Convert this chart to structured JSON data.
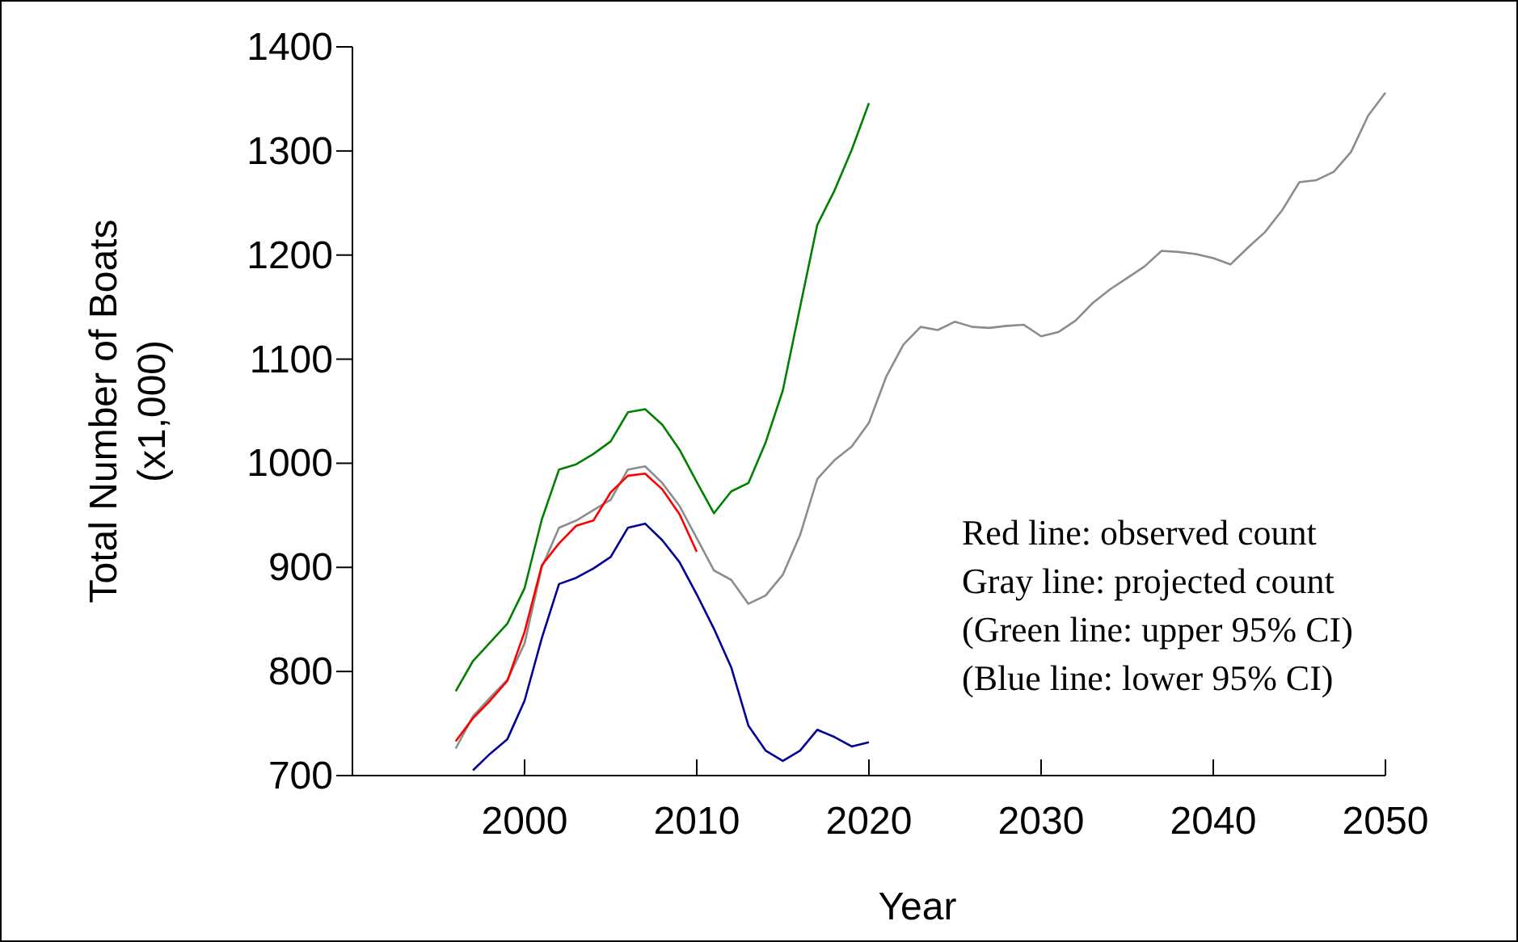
{
  "chart_data": {
    "type": "line",
    "xlabel": "Year",
    "ylabel": "Total Number of Boats\n(x1,000)",
    "xlim": [
      1990,
      2050
    ],
    "xticks": [
      2000,
      2010,
      2020,
      2030,
      2040,
      2050
    ],
    "ylim": [
      700,
      1400
    ],
    "yticks": [
      700,
      800,
      900,
      1000,
      1100,
      1200,
      1300,
      1400
    ],
    "grid": false,
    "marker": "none",
    "line_style": "solid",
    "annotations": [
      "Red line: observed count",
      "Gray line: projected count",
      "(Green line: upper 95% CI)",
      "(Blue line: lower 95% CI)"
    ],
    "series": [
      {
        "color": "#008000",
        "x": [
          1996,
          1997,
          1998,
          1999,
          2000,
          2001,
          2002,
          2003,
          2004,
          2005,
          2006,
          2007,
          2008,
          2009,
          2010,
          2011,
          2012,
          2013,
          2014,
          2015,
          2016,
          2017,
          2018,
          2019,
          2020
        ],
        "values": [
          781,
          810,
          828,
          846,
          880,
          946,
          994,
          999,
          1009,
          1021,
          1049,
          1052,
          1037,
          1013,
          982,
          952,
          973,
          981,
          1020,
          1070,
          1150,
          1229,
          1262,
          1301,
          1346
        ]
      },
      {
        "color": "#8c8c8c",
        "x": [
          1996,
          1997,
          1998,
          1999,
          2000,
          2001,
          2002,
          2003,
          2004,
          2005,
          2006,
          2007,
          2008,
          2009,
          2010,
          2011,
          2012,
          2013,
          2014,
          2015,
          2016,
          2017,
          2018,
          2019,
          2020,
          2021,
          2022,
          2023,
          2024,
          2025,
          2026,
          2027,
          2028,
          2029,
          2030,
          2031,
          2032,
          2033,
          2034,
          2035,
          2036,
          2037,
          2038,
          2039,
          2040,
          2041,
          2042,
          2043,
          2044,
          2045,
          2046,
          2047,
          2048,
          2049,
          2050
        ],
        "values": [
          726,
          757,
          775,
          792,
          827,
          900,
          938,
          945,
          955,
          965,
          994,
          997,
          981,
          959,
          928,
          897,
          888,
          865,
          873,
          893,
          931,
          985,
          1003,
          1016,
          1039,
          1083,
          1114,
          1131,
          1128,
          1136,
          1131,
          1130,
          1132,
          1133,
          1122,
          1126,
          1137,
          1154,
          1167,
          1178,
          1189,
          1204,
          1203,
          1201,
          1197,
          1191,
          1207,
          1222,
          1243,
          1270,
          1272,
          1280,
          1299,
          1334,
          1356
        ]
      },
      {
        "color": "#ff0000",
        "x": [
          1996,
          1997,
          1998,
          1999,
          2000,
          2001,
          2002,
          2003,
          2004,
          2005,
          2006,
          2007,
          2008,
          2009,
          2010
        ],
        "values": [
          733,
          755,
          772,
          791,
          838,
          902,
          923,
          940,
          945,
          972,
          988,
          990,
          975,
          951,
          915
        ]
      },
      {
        "color": "#000099",
        "x": [
          1997,
          1998,
          1999,
          2000,
          2001,
          2002,
          2003,
          2004,
          2005,
          2006,
          2007,
          2008,
          2009,
          2010,
          2011,
          2012,
          2013,
          2014,
          2015,
          2016,
          2017,
          2018,
          2019,
          2020
        ],
        "values": [
          705,
          721,
          735,
          772,
          832,
          884,
          890,
          899,
          910,
          938,
          942,
          926,
          905,
          874,
          841,
          804,
          748,
          724,
          714,
          724,
          744,
          737,
          728,
          732
        ]
      }
    ]
  }
}
